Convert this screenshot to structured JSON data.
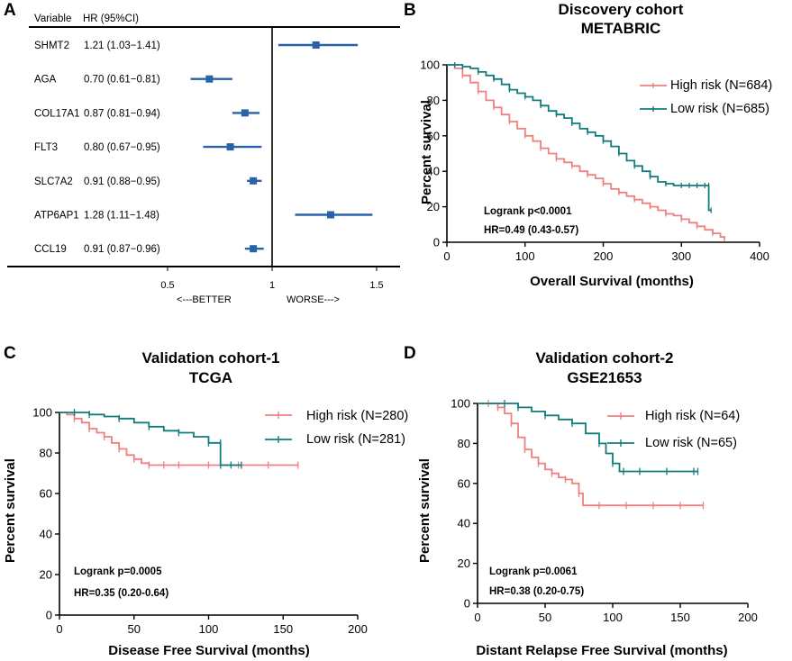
{
  "colors": {
    "high": "#F08080",
    "low": "#127C7C",
    "forest": "#2A62A8",
    "axis": "#000000"
  },
  "chart_data": [
    {
      "type": "forest",
      "panel": "A",
      "headers": {
        "variable": "Variable",
        "hr": "HR (95%CI)"
      },
      "xticks": [
        "0.5",
        "1",
        "1.5"
      ],
      "xvals": [
        0.5,
        1,
        1.5
      ],
      "xlim": [
        0.5,
        1.5
      ],
      "reference": 1,
      "direction": {
        "left": "<---BETTER",
        "right": "WORSE--->"
      },
      "rows": [
        {
          "variable": "SHMT2",
          "label": "1.21 (1.03−1.41)",
          "hr": 1.21,
          "lo": 1.03,
          "hi": 1.41
        },
        {
          "variable": "AGA",
          "label": "0.70 (0.61−0.81)",
          "hr": 0.7,
          "lo": 0.61,
          "hi": 0.81
        },
        {
          "variable": "COL17A1",
          "label": "0.87 (0.81−0.94)",
          "hr": 0.87,
          "lo": 0.81,
          "hi": 0.94
        },
        {
          "variable": "FLT3",
          "label": "0.80 (0.67−0.95)",
          "hr": 0.8,
          "lo": 0.67,
          "hi": 0.95
        },
        {
          "variable": "SLC7A2",
          "label": "0.91 (0.88−0.95)",
          "hr": 0.91,
          "lo": 0.88,
          "hi": 0.95
        },
        {
          "variable": "ATP6AP1",
          "label": "1.28  (1.11−1.48)",
          "hr": 1.28,
          "lo": 1.11,
          "hi": 1.48
        },
        {
          "variable": "CCL19",
          "label": "0.91 (0.87−0.96)",
          "hr": 0.91,
          "lo": 0.87,
          "hi": 0.96
        }
      ]
    },
    {
      "type": "line",
      "panel": "B",
      "title": [
        "Discovery cohort",
        "METABRIC"
      ],
      "xlabel": "Overall Survival (months)",
      "ylabel": "Percent survival",
      "xlim": [
        0,
        400
      ],
      "ylim": [
        0,
        100
      ],
      "xticks": [
        0,
        100,
        200,
        300,
        400
      ],
      "yticks": [
        0,
        20,
        40,
        60,
        80,
        100
      ],
      "stats": [
        "Logrank p<0.0001",
        "HR=0.49 (0.43-0.57)"
      ],
      "series": [
        {
          "name": "High risk (N=684)",
          "color": "#F08080",
          "x": [
            0,
            10,
            20,
            30,
            40,
            50,
            60,
            70,
            80,
            90,
            100,
            110,
            120,
            130,
            140,
            150,
            160,
            170,
            180,
            190,
            200,
            210,
            220,
            230,
            240,
            250,
            260,
            270,
            280,
            290,
            300,
            310,
            320,
            330,
            340,
            350,
            355
          ],
          "y": [
            100,
            98,
            94,
            90,
            85,
            80,
            76,
            72,
            68,
            64,
            60,
            57,
            53,
            50,
            47,
            45,
            43,
            40,
            38,
            36,
            33,
            30,
            28,
            26,
            24,
            22,
            20,
            18,
            16,
            15,
            13,
            11,
            9,
            7,
            5,
            3,
            2
          ]
        },
        {
          "name": "Low risk (N=685)",
          "color": "#127C7C",
          "x": [
            0,
            10,
            20,
            30,
            40,
            50,
            60,
            70,
            80,
            90,
            100,
            110,
            120,
            130,
            140,
            150,
            160,
            170,
            180,
            190,
            200,
            210,
            220,
            230,
            240,
            250,
            260,
            270,
            280,
            290,
            300,
            310,
            320,
            330,
            335,
            335,
            338
          ],
          "y": [
            100,
            100,
            99,
            98,
            96,
            94,
            92,
            89,
            86,
            84,
            82,
            80,
            77,
            74,
            72,
            70,
            67,
            64,
            62,
            60,
            57,
            54,
            50,
            46,
            43,
            40,
            37,
            34,
            33,
            32,
            32,
            32,
            32,
            32,
            32,
            18,
            18
          ]
        }
      ]
    },
    {
      "type": "line",
      "panel": "C",
      "title": [
        "Validation cohort-1",
        "TCGA"
      ],
      "xlabel": "Disease Free Survival (months)",
      "ylabel": "Percent survival",
      "xlim": [
        0,
        200
      ],
      "ylim": [
        0,
        100
      ],
      "xticks": [
        0,
        50,
        100,
        150,
        200
      ],
      "yticks": [
        0,
        20,
        40,
        60,
        80,
        100
      ],
      "stats": [
        "Logrank p=0.0005",
        "HR=0.35 (0.20-0.64)"
      ],
      "series": [
        {
          "name": "High risk (N=280)",
          "color": "#F08080",
          "x": [
            0,
            5,
            10,
            15,
            20,
            25,
            30,
            35,
            40,
            45,
            50,
            55,
            60,
            70,
            80,
            100,
            120,
            140,
            160
          ],
          "y": [
            100,
            99,
            97,
            95,
            92,
            90,
            88,
            85,
            82,
            79,
            77,
            75,
            74,
            74,
            74,
            74,
            74,
            74,
            74
          ]
        },
        {
          "name": "Low risk (N=281)",
          "color": "#127C7C",
          "x": [
            0,
            10,
            20,
            30,
            40,
            50,
            60,
            70,
            80,
            90,
            100,
            108,
            108,
            115,
            122
          ],
          "y": [
            100,
            100,
            99,
            98,
            97,
            95,
            93,
            91,
            90,
            88,
            85,
            85,
            74,
            74,
            74
          ]
        }
      ]
    },
    {
      "type": "line",
      "panel": "D",
      "title": [
        "Validation cohort-2",
        "GSE21653"
      ],
      "xlabel": "Distant Relapse Free Survival (months)",
      "ylabel": "Percent survival",
      "xlim": [
        0,
        200
      ],
      "ylim": [
        0,
        100
      ],
      "xticks": [
        0,
        50,
        100,
        150,
        200
      ],
      "yticks": [
        0,
        20,
        40,
        60,
        80,
        100
      ],
      "stats": [
        "Logrank p=0.0061",
        "HR=0.38 (0.20-0.75)"
      ],
      "series": [
        {
          "name": "High risk (N=64)",
          "color": "#F08080",
          "x": [
            0,
            8,
            15,
            20,
            25,
            30,
            35,
            40,
            45,
            50,
            55,
            60,
            65,
            70,
            75,
            78,
            90,
            110,
            130,
            150,
            167
          ],
          "y": [
            100,
            100,
            98,
            95,
            90,
            83,
            77,
            73,
            70,
            67,
            65,
            63,
            62,
            60,
            55,
            49,
            49,
            49,
            49,
            49,
            49
          ]
        },
        {
          "name": "Low risk (N=65)",
          "color": "#127C7C",
          "x": [
            0,
            20,
            30,
            40,
            50,
            60,
            70,
            80,
            90,
            95,
            100,
            105,
            108,
            120,
            140,
            160,
            163
          ],
          "y": [
            100,
            100,
            98,
            96,
            94,
            92,
            90,
            85,
            80,
            75,
            70,
            66,
            66,
            66,
            66,
            66,
            66
          ]
        }
      ]
    }
  ]
}
